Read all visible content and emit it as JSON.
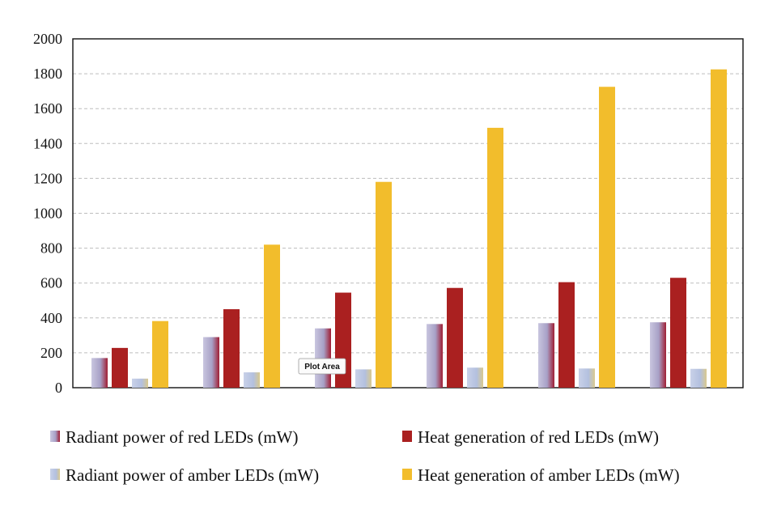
{
  "chart_data": {
    "type": "bar",
    "title": "",
    "xlabel": "",
    "ylabel": "",
    "ylim": [
      0,
      2000
    ],
    "yticks": [
      0,
      200,
      400,
      600,
      800,
      1000,
      1200,
      1400,
      1600,
      1800,
      2000
    ],
    "grid": "horizontal-dashed",
    "legend_position": "bottom",
    "colors": {
      "radiant_red": "#b2a6c9",
      "heat_red": "#aa2020",
      "radiant_amber": "#b3c0df",
      "heat_amber": "#f2bd2c"
    },
    "series": [
      {
        "name": "Radiant power of red LEDs (mW)",
        "values": [
          170,
          290,
          340,
          365,
          370,
          375
        ]
      },
      {
        "name": "Heat generation of red LEDs (mW)",
        "values": [
          228,
          450,
          545,
          572,
          605,
          630
        ]
      },
      {
        "name": "Radiant power of amber LEDs (mW)",
        "values": [
          52,
          88,
          105,
          115,
          110,
          108
        ]
      },
      {
        "name": "Heat generation of amber LEDs (mW)",
        "values": [
          382,
          820,
          1180,
          1490,
          1725,
          1825
        ]
      }
    ],
    "tooltip": "Plot Area"
  }
}
